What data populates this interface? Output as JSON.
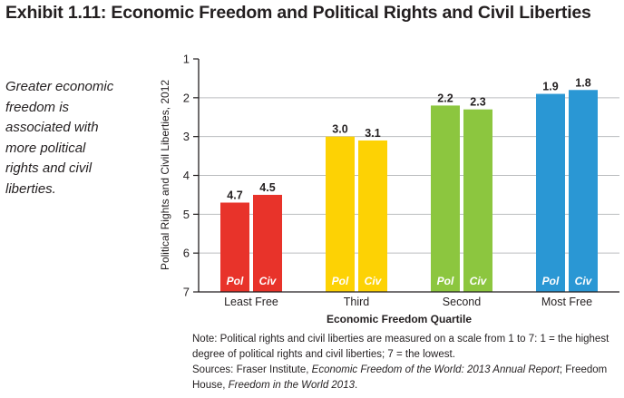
{
  "header": {
    "title": "Exhibit 1.11: Economic Freedom and Political Rights and Civil Liberties"
  },
  "caption": {
    "lines": [
      "Greater economic",
      "freedom is",
      "associated with",
      "more political",
      "rights and civil",
      "liberties."
    ]
  },
  "chart_data": {
    "type": "bar",
    "ylabel": "Political Rights and Civil Liberties, 2012",
    "xlabel": "Economic Freedom Quartile",
    "ylim": [
      1,
      7
    ],
    "yticks": [
      "1",
      "2",
      "3",
      "4",
      "5",
      "6",
      "7"
    ],
    "y_inverted": true,
    "categories": [
      "Least Free",
      "Third",
      "Second",
      "Most Free"
    ],
    "category_colors": [
      "#e8332a",
      "#fdd204",
      "#8cc63f",
      "#2a97d4"
    ],
    "series": [
      {
        "name": "Pol",
        "values": [
          4.7,
          3.0,
          2.2,
          1.9
        ],
        "labels": [
          "4.7",
          "3.0",
          "2.2",
          "1.9"
        ]
      },
      {
        "name": "Civ",
        "values": [
          4.5,
          3.1,
          2.3,
          1.8
        ],
        "labels": [
          "4.5",
          "3.1",
          "2.3",
          "1.8"
        ]
      }
    ],
    "grid": true
  },
  "note": {
    "line1": "Note: Political rights and civil liberties are measured on a scale from 1 to 7: 1 = the highest",
    "line2": "degree of political rights and civil liberties; 7 = the lowest.",
    "sources_prefix": "Sources: Fraser Institute, ",
    "sources_efw": "Economic Freedom of the World: 2013 Annual Report",
    "sources_mid": "; Freedom",
    "sources_house": "House, ",
    "sources_fiw": "Freedom in the World 2013",
    "sources_end": "."
  }
}
